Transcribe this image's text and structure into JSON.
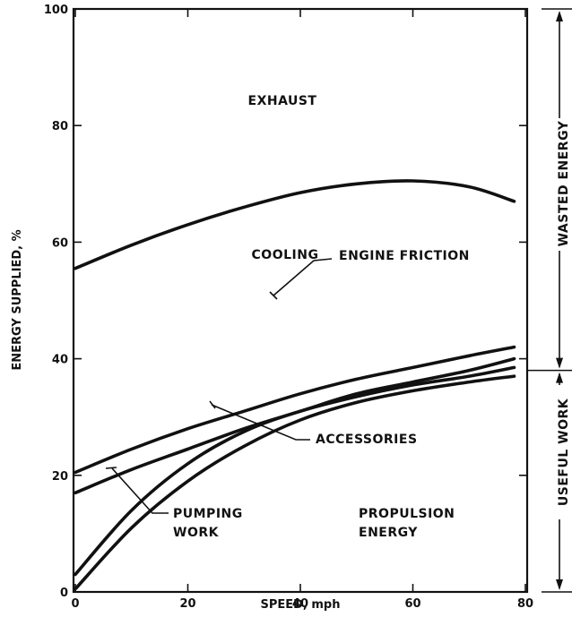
{
  "chart_data": {
    "type": "area",
    "title": "",
    "xlabel": "SPEED, mph",
    "ylabel": "ENERGY SUPPLIED, %",
    "xlim": [
      0,
      80
    ],
    "ylim": [
      0,
      100
    ],
    "xticks": [
      "0",
      "20",
      "40",
      "60",
      "80"
    ],
    "yticks": [
      "0",
      "20",
      "40",
      "60",
      "80",
      "100"
    ],
    "grid": false,
    "x": [
      0,
      10,
      20,
      30,
      40,
      50,
      60,
      70,
      78
    ],
    "series": [
      {
        "name": "PUMPING WORK",
        "values": [
          0.5,
          11,
          19,
          25,
          29.5,
          32.5,
          34.5,
          36,
          37
        ]
      },
      {
        "name": "ACCESSORIES",
        "values": [
          3,
          14,
          22,
          27.5,
          31,
          33.5,
          35.5,
          37,
          38.5
        ]
      },
      {
        "name": "ENGINE FRICTION",
        "values": [
          17,
          21,
          24.5,
          28,
          31,
          34,
          36,
          38,
          40
        ]
      },
      {
        "name": "COOLING",
        "values": [
          20.5,
          24.5,
          28,
          31,
          34,
          36.5,
          38.5,
          40.5,
          42
        ]
      },
      {
        "name": "EXHAUST",
        "values": [
          55.5,
          59.5,
          63,
          66,
          68.5,
          70,
          70.5,
          69.5,
          67
        ]
      }
    ],
    "regions": {
      "exhaust": "EXHAUST",
      "cooling": "COOLING",
      "engine_friction": "ENGINE FRICTION",
      "accessories": "ACCESSORIES",
      "pumping_work_line1": "PUMPING",
      "pumping_work_line2": "WORK",
      "propulsion_line1": "PROPULSION",
      "propulsion_line2": "ENERGY"
    },
    "side_bracket": {
      "split_value": 38,
      "upper_label": "WASTED ENERGY",
      "lower_label": "USEFUL WORK"
    }
  }
}
